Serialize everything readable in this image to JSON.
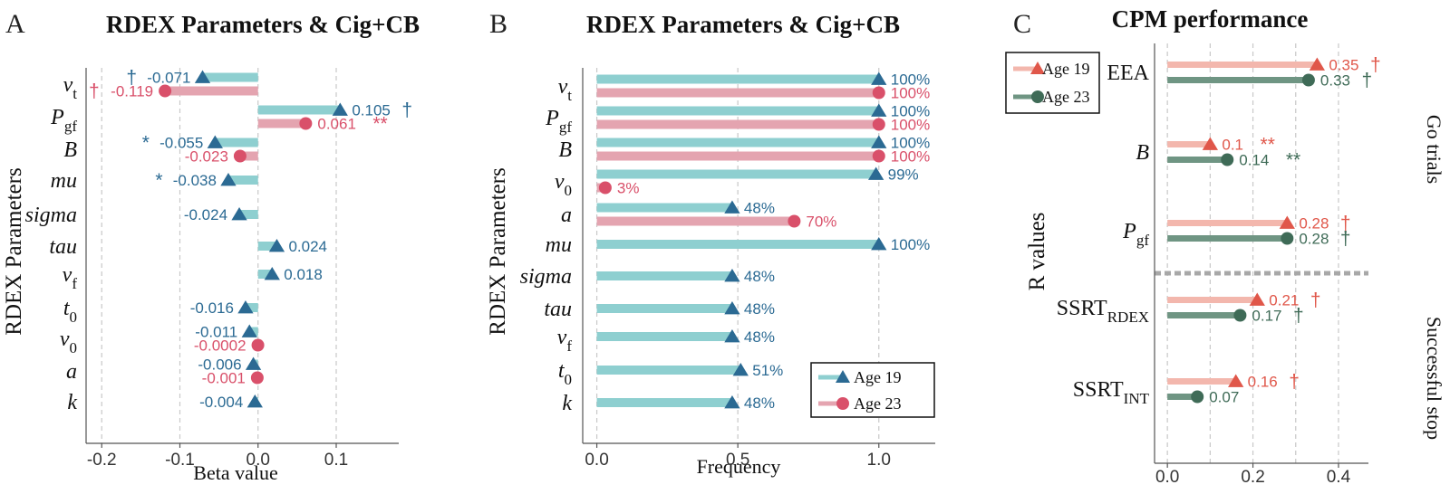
{
  "colors": {
    "teal_bar": "#8ecfd0",
    "teal_mark": "#2b6a93",
    "pink_bar": "#e4a4b0",
    "pink_mark": "#d9506a",
    "salmon_bar": "#f3b7ad",
    "salmon_mark": "#e0574a",
    "green_bar": "#6f9583",
    "green_mark": "#3f6b57",
    "grid": "#c8c8c8",
    "divider": "#a8a8a8"
  },
  "chart_data": [
    {
      "panel_label": "A",
      "type": "bar",
      "title": "RDEX Parameters & Cig+CB",
      "xlabel": "Beta value",
      "ylabel": "RDEX Parameters",
      "xlim": [
        -0.22,
        0.18
      ],
      "xticks": [
        -0.2,
        -0.1,
        0.0,
        0.1
      ],
      "xtick_labels": [
        "-0.2",
        "-0.1",
        "0.0",
        "0.1"
      ],
      "grid": "vertical dashed",
      "categories": [
        "v",
        "P",
        "B",
        "mu",
        "sigma",
        "tau",
        "v",
        "t",
        "v",
        "a",
        "k"
      ],
      "category_subscripts": [
        "t",
        "gf",
        "",
        "",
        "",
        "",
        "f",
        "0",
        "0",
        "",
        ""
      ],
      "series": [
        {
          "name": "Age 19",
          "marker": "triangle",
          "values": [
            -0.071,
            0.105,
            -0.055,
            -0.038,
            -0.024,
            0.024,
            0.018,
            -0.016,
            -0.011,
            -0.006,
            -0.004
          ],
          "labels": [
            "-0.071",
            "0.105",
            "-0.055",
            "-0.038",
            "-0.024",
            "0.024",
            "0.018",
            "-0.016",
            "-0.011",
            "-0.006",
            "-0.004"
          ],
          "sig": [
            "†",
            "†",
            "*",
            "*",
            "",
            "",
            "",
            "",
            "",
            "",
            ""
          ]
        },
        {
          "name": "Age 23",
          "marker": "circle",
          "values": [
            -0.119,
            0.061,
            -0.023,
            null,
            null,
            null,
            null,
            null,
            -0.0002,
            -0.001,
            null
          ],
          "labels": [
            "-0.119",
            "0.061",
            "-0.023",
            "",
            "",
            "",
            "",
            "",
            "-0.0002",
            "-0.001",
            ""
          ],
          "sig": [
            "†",
            "**",
            "",
            "",
            "",
            "",
            "",
            "",
            "",
            "",
            ""
          ]
        }
      ]
    },
    {
      "panel_label": "B",
      "type": "bar",
      "title": "RDEX Parameters & Cig+CB",
      "xlabel": "Frequency",
      "ylabel": "RDEX Parameters",
      "xlim": [
        -0.05,
        1.2
      ],
      "xticks": [
        0.0,
        0.5,
        1.0
      ],
      "xtick_labels": [
        "0.0",
        "0.5",
        "1.0"
      ],
      "grid": "vertical dashed",
      "legend_placement": "bottom-right",
      "categories": [
        "v",
        "P",
        "B",
        "v",
        "a",
        "mu",
        "sigma",
        "tau",
        "v",
        "t",
        "k"
      ],
      "category_subscripts": [
        "t",
        "gf",
        "",
        "0",
        "",
        "",
        "",
        "",
        "f",
        "0",
        ""
      ],
      "series": [
        {
          "name": "Age 19",
          "marker": "triangle",
          "values": [
            1.0,
            1.0,
            1.0,
            0.99,
            0.48,
            1.0,
            0.48,
            0.48,
            0.48,
            0.51,
            0.48
          ],
          "labels": [
            "100%",
            "100%",
            "100%",
            "99%",
            "48%",
            "100%",
            "48%",
            "48%",
            "48%",
            "51%",
            "48%"
          ]
        },
        {
          "name": "Age 23",
          "marker": "circle",
          "values": [
            1.0,
            1.0,
            1.0,
            0.03,
            0.7,
            null,
            null,
            null,
            null,
            null,
            null
          ],
          "labels": [
            "100%",
            "100%",
            "100%",
            "3%",
            "70%",
            "",
            "",
            "",
            "",
            "",
            ""
          ]
        }
      ]
    },
    {
      "panel_label": "C",
      "type": "bar",
      "title": "CPM performance",
      "xlabel": "",
      "ylabel": "R values",
      "xlim": [
        -0.03,
        0.47
      ],
      "xticks": [
        0.0,
        0.2,
        0.4
      ],
      "xtick_labels": [
        "0.0",
        "0.2",
        "0.4"
      ],
      "minor_grid": [
        0.1,
        0.3
      ],
      "grid": "vertical dashed",
      "legend_placement": "top-left",
      "groups": [
        "Go trials",
        "Successful stop"
      ],
      "categories": [
        "EEA",
        "B",
        "P",
        "SSRT",
        "SSRT"
      ],
      "category_subscripts": [
        "",
        "",
        "gf",
        "RDEX",
        "INT"
      ],
      "series": [
        {
          "name": "Age 19",
          "marker": "triangle",
          "values": [
            0.35,
            0.1,
            0.28,
            0.21,
            0.16
          ],
          "labels": [
            "0.35",
            "0.1",
            "0.28",
            "0.21",
            "0.16"
          ],
          "sig": [
            "†",
            "**",
            "†",
            "†",
            "†"
          ]
        },
        {
          "name": "Age 23",
          "marker": "circle",
          "values": [
            0.33,
            0.14,
            0.28,
            0.17,
            0.07
          ],
          "labels": [
            "0.33",
            "0.14",
            "0.28",
            "0.17",
            "0.07"
          ],
          "sig": [
            "†",
            "**",
            "†",
            "†",
            ""
          ]
        }
      ]
    }
  ]
}
